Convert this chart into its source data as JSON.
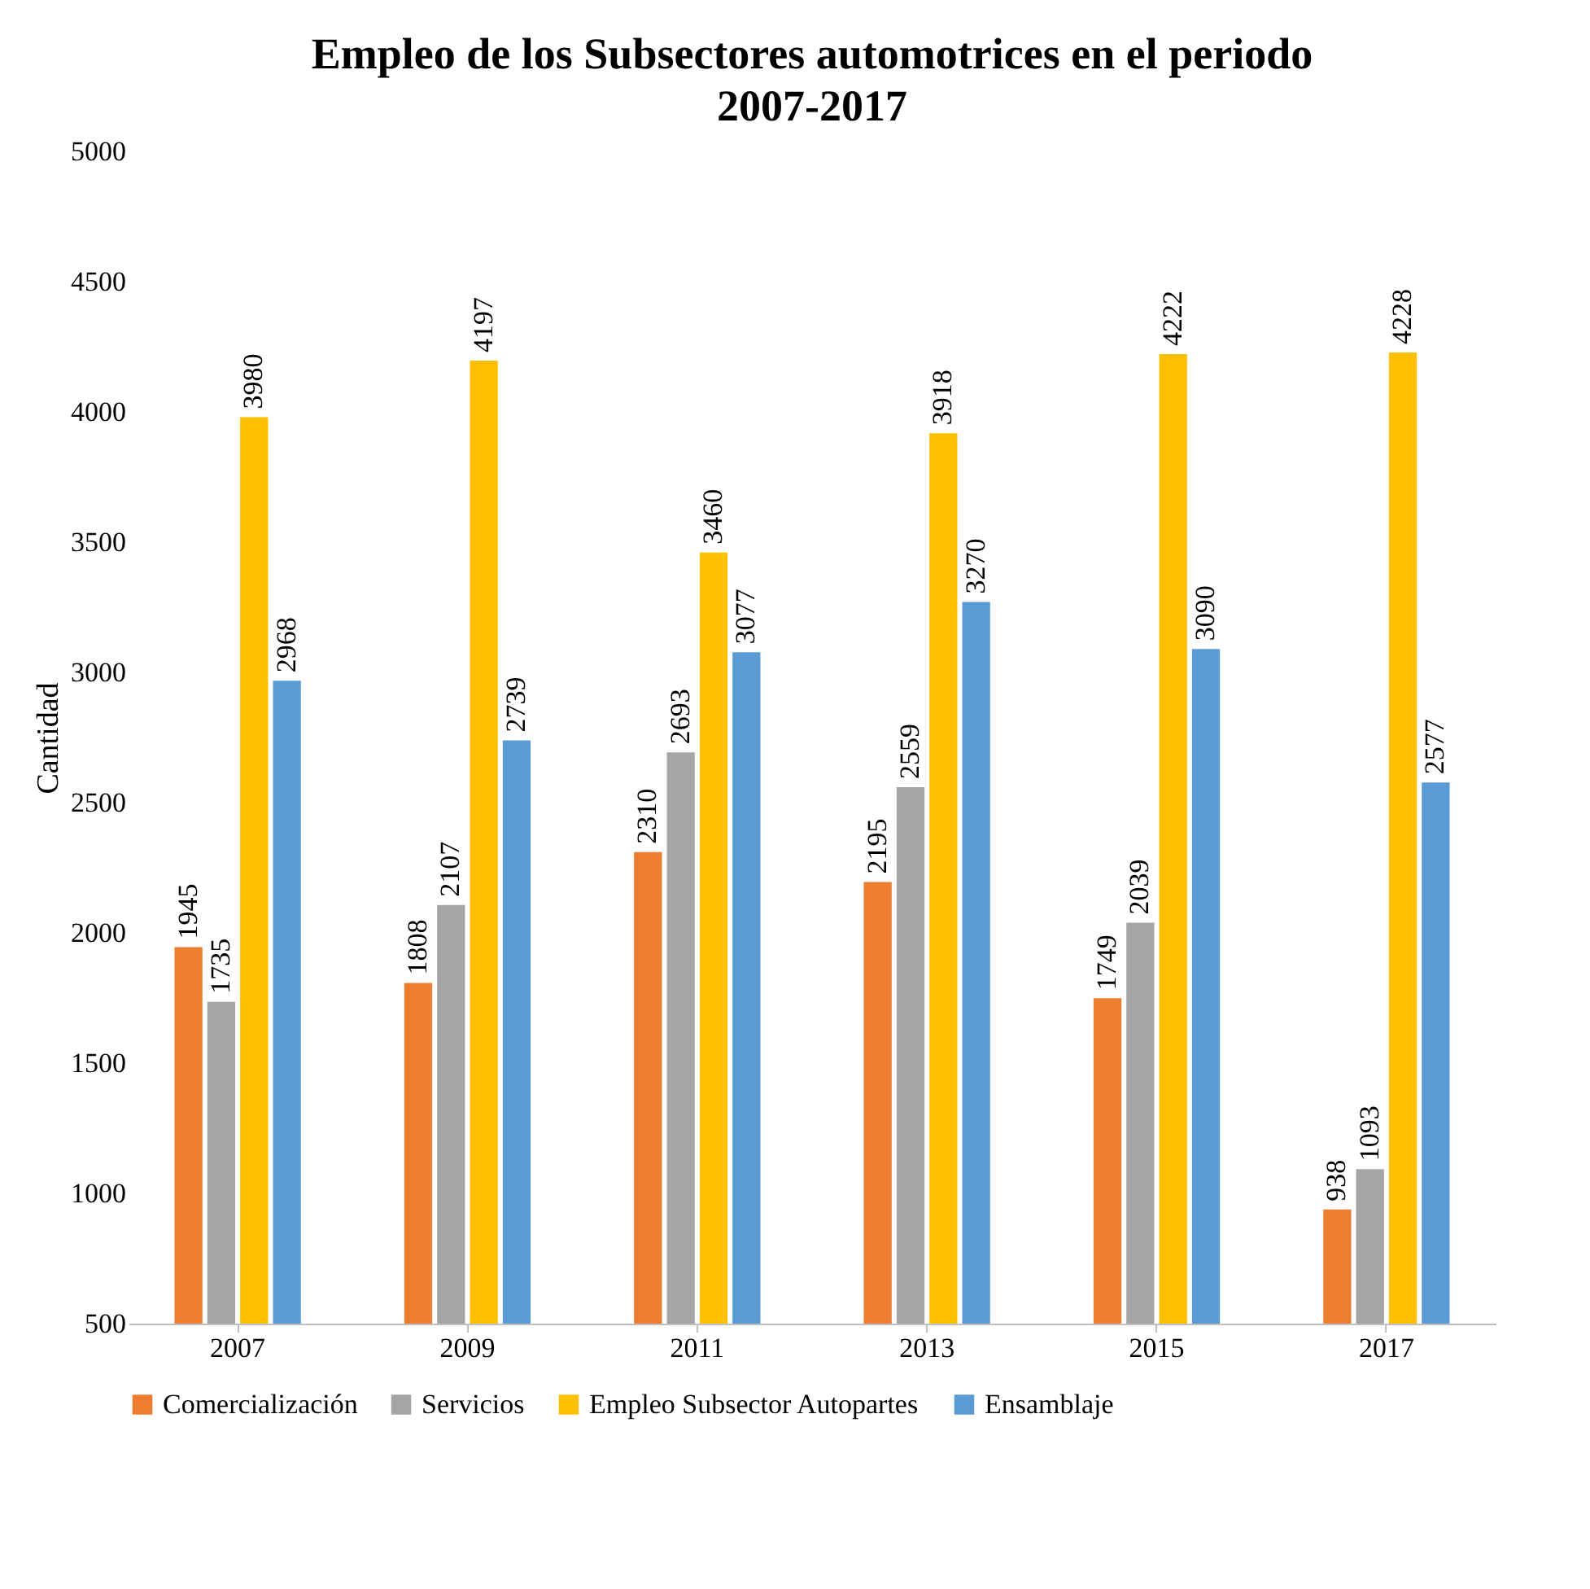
{
  "chart_data": {
    "type": "bar",
    "title": "Empleo de los Subsectores automotrices en el periodo 2007-2017",
    "ylabel": "Cantidad",
    "categories": [
      "2007",
      "2009",
      "2011",
      "2013",
      "2015",
      "2017"
    ],
    "series": [
      {
        "name": "Comercialización",
        "color": "#ed7d31",
        "values": [
          1945,
          1808,
          2310,
          2195,
          1749,
          938
        ]
      },
      {
        "name": "Servicios",
        "color": "#a5a5a5",
        "values": [
          1735,
          2107,
          2693,
          2559,
          2039,
          1093
        ]
      },
      {
        "name": "Empleo Subsector Autopartes",
        "color": "#ffc000",
        "values": [
          3980,
          4197,
          3460,
          3918,
          4222,
          4228
        ]
      },
      {
        "name": "Ensamblaje",
        "color": "#5b9bd5",
        "values": [
          2968,
          2739,
          3077,
          3270,
          3090,
          2577
        ]
      }
    ],
    "ylim": [
      500,
      5000
    ],
    "yticks": [
      500,
      1000,
      1500,
      2000,
      2500,
      3000,
      3500,
      4000,
      4500,
      5000
    ],
    "data_labels": true,
    "legend": "bottom",
    "grid": false
  }
}
